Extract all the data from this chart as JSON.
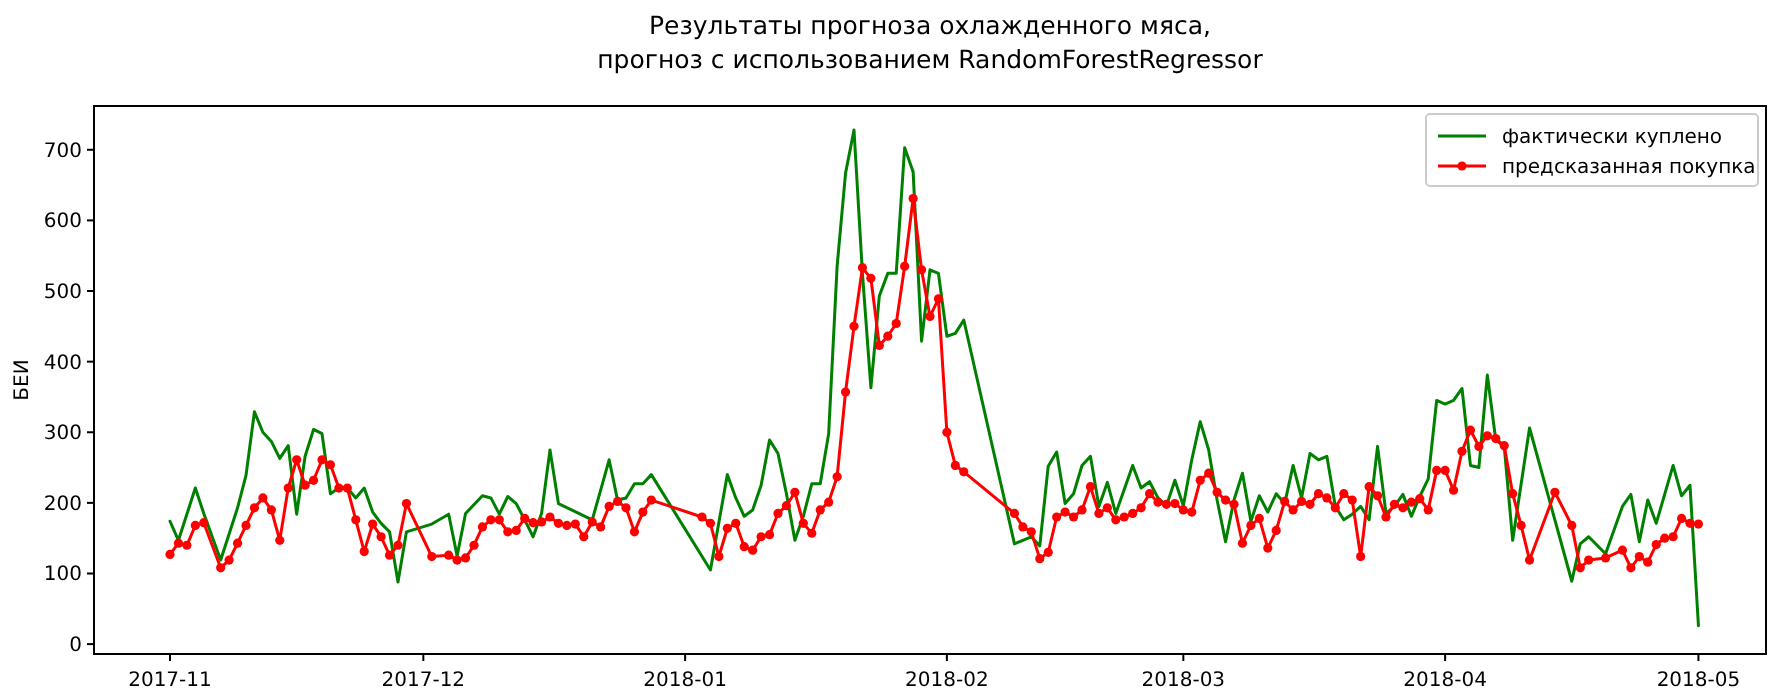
{
  "chart_data": {
    "type": "line",
    "title": "Результаты прогноза охлажденного мяса,\nпрогноз с использованием RandomForestRegressor",
    "ylabel": "БЕИ",
    "xlim": [
      "2017-10-23",
      "2018-05-09"
    ],
    "xticks": [
      "2017-11",
      "2017-12",
      "2018-01",
      "2018-02",
      "2018-03",
      "2018-04",
      "2018-05"
    ],
    "ylim": [
      -14,
      762
    ],
    "yticks": [
      0,
      100,
      200,
      300,
      400,
      500,
      600,
      700
    ],
    "grid": false,
    "legend": "top right",
    "line_style": "solid",
    "series": [
      {
        "name": "фактически куплено",
        "color": "#008000",
        "marker": "none",
        "x": [
          "2017-11-01",
          "2017-11-02",
          "2017-11-04",
          "2017-11-05",
          "2017-11-07",
          "2017-11-08",
          "2017-11-09",
          "2017-11-10",
          "2017-11-11",
          "2017-11-12",
          "2017-11-13",
          "2017-11-14",
          "2017-11-15",
          "2017-11-16",
          "2017-11-17",
          "2017-11-18",
          "2017-11-19",
          "2017-11-20",
          "2017-11-21",
          "2017-11-22",
          "2017-11-23",
          "2017-11-24",
          "2017-11-25",
          "2017-11-26",
          "2017-11-27",
          "2017-11-28",
          "2017-11-29",
          "2017-12-02",
          "2017-12-04",
          "2017-12-05",
          "2017-12-06",
          "2017-12-08",
          "2017-12-09",
          "2017-12-10",
          "2017-12-11",
          "2017-12-12",
          "2017-12-13",
          "2017-12-14",
          "2017-12-15",
          "2017-12-16",
          "2017-12-17",
          "2017-12-21",
          "2017-12-22",
          "2017-12-23",
          "2017-12-24",
          "2017-12-25",
          "2017-12-26",
          "2017-12-27",
          "2017-12-28",
          "2018-01-04",
          "2018-01-06",
          "2018-01-07",
          "2018-01-08",
          "2018-01-09",
          "2018-01-10",
          "2018-01-11",
          "2018-01-12",
          "2018-01-13",
          "2018-01-14",
          "2018-01-15",
          "2018-01-16",
          "2018-01-17",
          "2018-01-18",
          "2018-01-19",
          "2018-01-20",
          "2018-01-21",
          "2018-01-22",
          "2018-01-23",
          "2018-01-24",
          "2018-01-25",
          "2018-01-26",
          "2018-01-27",
          "2018-01-28",
          "2018-01-29",
          "2018-01-30",
          "2018-01-31",
          "2018-02-01",
          "2018-02-02",
          "2018-02-03",
          "2018-02-09",
          "2018-02-11",
          "2018-02-12",
          "2018-02-13",
          "2018-02-14",
          "2018-02-15",
          "2018-02-16",
          "2018-02-17",
          "2018-02-18",
          "2018-02-19",
          "2018-02-20",
          "2018-02-21",
          "2018-02-23",
          "2018-02-24",
          "2018-02-25",
          "2018-02-26",
          "2018-02-27",
          "2018-02-28",
          "2018-03-01",
          "2018-03-02",
          "2018-03-03",
          "2018-03-04",
          "2018-03-05",
          "2018-03-06",
          "2018-03-07",
          "2018-03-08",
          "2018-03-09",
          "2018-03-10",
          "2018-03-11",
          "2018-03-12",
          "2018-03-13",
          "2018-03-14",
          "2018-03-15",
          "2018-03-16",
          "2018-03-17",
          "2018-03-18",
          "2018-03-19",
          "2018-03-20",
          "2018-03-21",
          "2018-03-22",
          "2018-03-23",
          "2018-03-24",
          "2018-03-25",
          "2018-03-26",
          "2018-03-27",
          "2018-03-28",
          "2018-03-29",
          "2018-03-30",
          "2018-03-31",
          "2018-04-01",
          "2018-04-02",
          "2018-04-03",
          "2018-04-04",
          "2018-04-05",
          "2018-04-06",
          "2018-04-07",
          "2018-04-08",
          "2018-04-09",
          "2018-04-11",
          "2018-04-16",
          "2018-04-17",
          "2018-04-18",
          "2018-04-20",
          "2018-04-22",
          "2018-04-23",
          "2018-04-24",
          "2018-04-25",
          "2018-04-26",
          "2018-04-28",
          "2018-04-29",
          "2018-04-30",
          "2018-05-01"
        ],
        "values": [
          174,
          147,
          221,
          185,
          119,
          156,
          193,
          239,
          329,
          300,
          287,
          263,
          281,
          184,
          266,
          304,
          298,
          213,
          221,
          221,
          207,
          221,
          187,
          171,
          159,
          88,
          159,
          170,
          184,
          125,
          185,
          210,
          207,
          184,
          209,
          199,
          176,
          152,
          185,
          275,
          199,
          176,
          218,
          261,
          204,
          207,
          227,
          227,
          240,
          105,
          240,
          207,
          181,
          190,
          225,
          289,
          270,
          213,
          147,
          181,
          227,
          227,
          298,
          535,
          667,
          728,
          525,
          363,
          493,
          525,
          525,
          703,
          669,
          429,
          530,
          525,
          436,
          440,
          459,
          142,
          152,
          139,
          252,
          272,
          199,
          213,
          253,
          266,
          195,
          229,
          185,
          253,
          221,
          230,
          207,
          196,
          232,
          196,
          261,
          315,
          275,
          204,
          145,
          204,
          242,
          174,
          210,
          187,
          213,
          199,
          253,
          207,
          270,
          261,
          266,
          195,
          176,
          184,
          195,
          176,
          280,
          185,
          195,
          212,
          181,
          209,
          234,
          345,
          340,
          345,
          362,
          253,
          250,
          381,
          289,
          280,
          147,
          306,
          89,
          142,
          152,
          128,
          195,
          212,
          145,
          204,
          171,
          253,
          210,
          225,
          26
        ]
      },
      {
        "name": "предсказанная покупка",
        "color": "#ff0000",
        "marker": "circle",
        "x": [
          "2017-11-01",
          "2017-11-02",
          "2017-11-03",
          "2017-11-04",
          "2017-11-05",
          "2017-11-07",
          "2017-11-08",
          "2017-11-09",
          "2017-11-10",
          "2017-11-11",
          "2017-11-12",
          "2017-11-13",
          "2017-11-14",
          "2017-11-15",
          "2017-11-16",
          "2017-11-17",
          "2017-11-18",
          "2017-11-19",
          "2017-11-20",
          "2017-11-21",
          "2017-11-22",
          "2017-11-23",
          "2017-11-24",
          "2017-11-25",
          "2017-11-26",
          "2017-11-27",
          "2017-11-28",
          "2017-11-29",
          "2017-12-02",
          "2017-12-04",
          "2017-12-05",
          "2017-12-06",
          "2017-12-07",
          "2017-12-08",
          "2017-12-09",
          "2017-12-10",
          "2017-12-11",
          "2017-12-12",
          "2017-12-13",
          "2017-12-14",
          "2017-12-15",
          "2017-12-16",
          "2017-12-17",
          "2017-12-18",
          "2017-12-19",
          "2017-12-20",
          "2017-12-21",
          "2017-12-22",
          "2017-12-23",
          "2017-12-24",
          "2017-12-25",
          "2017-12-26",
          "2017-12-27",
          "2017-12-28",
          "2018-01-03",
          "2018-01-04",
          "2018-01-05",
          "2018-01-06",
          "2018-01-07",
          "2018-01-08",
          "2018-01-09",
          "2018-01-10",
          "2018-01-11",
          "2018-01-12",
          "2018-01-13",
          "2018-01-14",
          "2018-01-15",
          "2018-01-16",
          "2018-01-17",
          "2018-01-18",
          "2018-01-19",
          "2018-01-20",
          "2018-01-21",
          "2018-01-22",
          "2018-01-23",
          "2018-01-24",
          "2018-01-25",
          "2018-01-26",
          "2018-01-27",
          "2018-01-28",
          "2018-01-29",
          "2018-01-30",
          "2018-01-31",
          "2018-02-01",
          "2018-02-02",
          "2018-02-03",
          "2018-02-09",
          "2018-02-10",
          "2018-02-11",
          "2018-02-12",
          "2018-02-13",
          "2018-02-14",
          "2018-02-15",
          "2018-02-16",
          "2018-02-17",
          "2018-02-18",
          "2018-02-19",
          "2018-02-20",
          "2018-02-21",
          "2018-02-22",
          "2018-02-23",
          "2018-02-24",
          "2018-02-25",
          "2018-02-26",
          "2018-02-27",
          "2018-02-28",
          "2018-03-01",
          "2018-03-02",
          "2018-03-03",
          "2018-03-04",
          "2018-03-05",
          "2018-03-06",
          "2018-03-07",
          "2018-03-08",
          "2018-03-09",
          "2018-03-10",
          "2018-03-11",
          "2018-03-12",
          "2018-03-13",
          "2018-03-14",
          "2018-03-15",
          "2018-03-16",
          "2018-03-17",
          "2018-03-18",
          "2018-03-19",
          "2018-03-20",
          "2018-03-21",
          "2018-03-22",
          "2018-03-23",
          "2018-03-24",
          "2018-03-25",
          "2018-03-26",
          "2018-03-27",
          "2018-03-28",
          "2018-03-29",
          "2018-03-30",
          "2018-03-31",
          "2018-04-01",
          "2018-04-02",
          "2018-04-03",
          "2018-04-04",
          "2018-04-05",
          "2018-04-06",
          "2018-04-07",
          "2018-04-08",
          "2018-04-09",
          "2018-04-10",
          "2018-04-11",
          "2018-04-14",
          "2018-04-16",
          "2018-04-17",
          "2018-04-18",
          "2018-04-20",
          "2018-04-22",
          "2018-04-23",
          "2018-04-24",
          "2018-04-25",
          "2018-04-26",
          "2018-04-27",
          "2018-04-28",
          "2018-04-29",
          "2018-04-30",
          "2018-05-01"
        ],
        "values": [
          127,
          143,
          140,
          168,
          172,
          108,
          119,
          143,
          168,
          193,
          207,
          190,
          147,
          221,
          261,
          225,
          232,
          261,
          254,
          221,
          221,
          176,
          131,
          170,
          152,
          126,
          140,
          199,
          124,
          126,
          119,
          122,
          140,
          166,
          176,
          176,
          159,
          161,
          178,
          172,
          173,
          180,
          171,
          168,
          170,
          152,
          173,
          166,
          195,
          202,
          193,
          159,
          187,
          204,
          180,
          171,
          124,
          164,
          171,
          138,
          133,
          152,
          155,
          185,
          196,
          215,
          171,
          157,
          190,
          201,
          237,
          357,
          450,
          533,
          518,
          423,
          436,
          454,
          535,
          631,
          530,
          464,
          489,
          300,
          253,
          244,
          185,
          166,
          159,
          121,
          130,
          180,
          187,
          180,
          190,
          223,
          185,
          193,
          176,
          180,
          185,
          193,
          213,
          201,
          198,
          199,
          190,
          187,
          232,
          242,
          215,
          204,
          198,
          143,
          168,
          178,
          136,
          161,
          202,
          190,
          202,
          198,
          213,
          207,
          193,
          213,
          204,
          124,
          223,
          210,
          180,
          198,
          193,
          201,
          206,
          190,
          246,
          246,
          218,
          273,
          303,
          280,
          295,
          291,
          281,
          213,
          168,
          119,
          215,
          168,
          108,
          119,
          122,
          133,
          108,
          124,
          116,
          141,
          150,
          152,
          178,
          171,
          170
        ]
      }
    ]
  }
}
